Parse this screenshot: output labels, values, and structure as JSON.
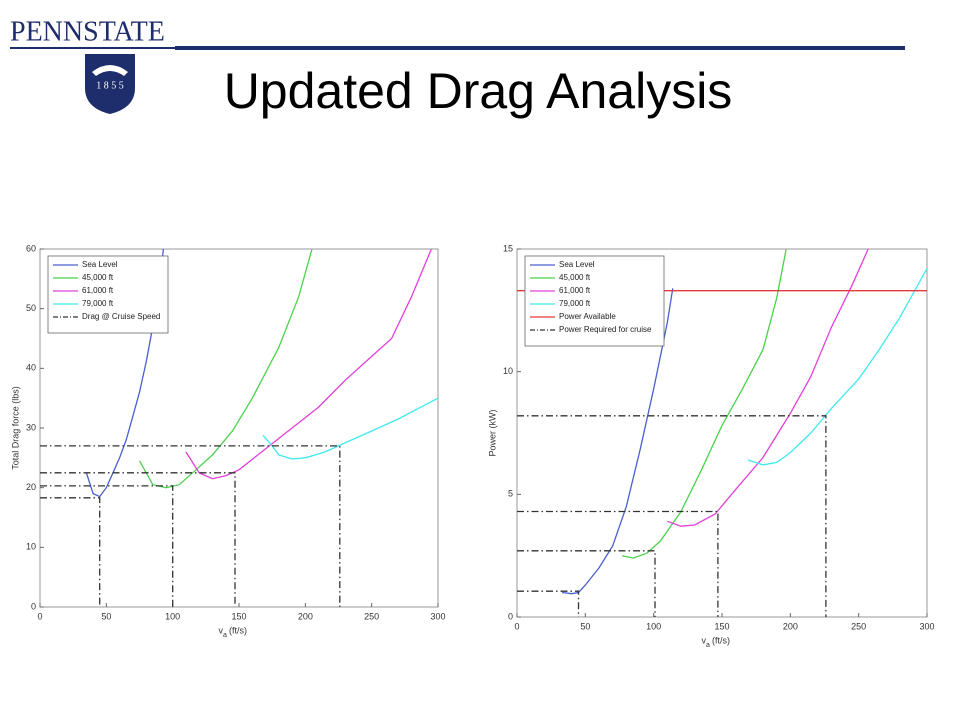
{
  "slide": {
    "title": "Updated Drag Analysis",
    "logo_text": "PENNSTATE",
    "logo_year": "1 8 5 5"
  },
  "chart_data": [
    {
      "type": "line",
      "y_label": "Total Drag force (lbs)",
      "x_label": "v",
      "x_label_sub": "a",
      "x_label_unit": "(ft/s)",
      "xlim": [
        0,
        300
      ],
      "xticks": [
        0,
        50,
        100,
        150,
        200,
        250,
        300
      ],
      "ylim": [
        0,
        60
      ],
      "yticks": [
        0,
        10,
        20,
        30,
        40,
        50,
        60
      ],
      "series": [
        {
          "name": "Sea Level",
          "color": "#4a5fd0",
          "style": "solid",
          "x": [
            35,
            40,
            45,
            50,
            55,
            60,
            65,
            70,
            75,
            80,
            85,
            90,
            93
          ],
          "values": [
            22.5,
            19,
            18.5,
            20,
            22.5,
            25,
            28,
            32,
            36,
            41,
            47,
            54,
            60
          ]
        },
        {
          "name": "45,000 ft",
          "color": "#4ad24a",
          "style": "solid",
          "x": [
            75,
            85,
            95,
            105,
            115,
            130,
            145,
            160,
            180,
            195,
            205
          ],
          "values": [
            24.5,
            20.5,
            20,
            20.5,
            22.5,
            25.5,
            29.5,
            35,
            43.5,
            52,
            60
          ]
        },
        {
          "name": "61,000 ft",
          "color": "#e040d8",
          "style": "solid",
          "x": [
            110,
            120,
            130,
            140,
            150,
            170,
            190,
            210,
            230,
            250,
            265,
            280,
            295
          ],
          "values": [
            26,
            22.5,
            21.5,
            22,
            23,
            26.5,
            30,
            33.5,
            38,
            42,
            45,
            52,
            60
          ]
        },
        {
          "name": "79,000 ft",
          "color": "#40e8f0",
          "style": "solid",
          "x": [
            168,
            175,
            180,
            190,
            200,
            215,
            230,
            250,
            270,
            300
          ],
          "values": [
            28.8,
            27,
            25.5,
            24.8,
            25,
            26,
            27.5,
            29.5,
            31.5,
            35
          ]
        },
        {
          "name": "Drag @ Cruise Speed",
          "color": "#333333",
          "style": "dashdot",
          "x": [
            0,
            45,
            45,
            null,
            0,
            100,
            100,
            null,
            0,
            147,
            147,
            null,
            0,
            226,
            226
          ],
          "values": [
            18.3,
            18.3,
            0,
            null,
            20.3,
            20.3,
            0,
            null,
            22.5,
            22.5,
            0,
            null,
            27,
            27,
            0
          ]
        }
      ]
    },
    {
      "type": "line",
      "y_label": "Power (kW)",
      "x_label": "v",
      "x_label_sub": "a",
      "x_label_unit": "(ft/s)",
      "xlim": [
        0,
        300
      ],
      "xticks": [
        0,
        50,
        100,
        150,
        200,
        250,
        300
      ],
      "ylim": [
        0,
        15
      ],
      "yticks": [
        0,
        5,
        10,
        15
      ],
      "series": [
        {
          "name": "Sea Level",
          "color": "#4a5fd0",
          "style": "solid",
          "x": [
            33,
            40,
            45,
            50,
            60,
            70,
            80,
            90,
            100,
            110,
            114
          ],
          "values": [
            1.0,
            0.95,
            1.0,
            1.3,
            2,
            2.9,
            4.5,
            6.8,
            9.3,
            12,
            13.4
          ]
        },
        {
          "name": "45,000 ft",
          "color": "#4ad24a",
          "style": "solid",
          "x": [
            77,
            85,
            95,
            105,
            120,
            135,
            150,
            165,
            180,
            190,
            197
          ],
          "values": [
            2.5,
            2.4,
            2.6,
            3.1,
            4.3,
            6,
            7.8,
            9.3,
            10.9,
            13,
            15
          ]
        },
        {
          "name": "61,000 ft",
          "color": "#e040d8",
          "style": "solid",
          "x": [
            110,
            120,
            130,
            145,
            160,
            180,
            200,
            215,
            230,
            245,
            257
          ],
          "values": [
            3.9,
            3.7,
            3.75,
            4.2,
            5.2,
            6.5,
            8.3,
            9.8,
            11.8,
            13.5,
            15
          ]
        },
        {
          "name": "79,000 ft",
          "color": "#40e8f0",
          "style": "solid",
          "x": [
            169,
            180,
            190,
            200,
            215,
            230,
            250,
            265,
            280,
            300
          ],
          "values": [
            6.4,
            6.2,
            6.3,
            6.7,
            7.5,
            8.5,
            9.7,
            10.9,
            12.2,
            14.2
          ]
        },
        {
          "name": "Power Available",
          "color": "#e03a3a",
          "style": "solid",
          "x": [
            0,
            300
          ],
          "values": [
            13.3,
            13.3
          ]
        },
        {
          "name": "Power Required for cruise",
          "color": "#333333",
          "style": "dashdot",
          "x": [
            0,
            45,
            45,
            null,
            0,
            101,
            101,
            null,
            0,
            147,
            147,
            null,
            0,
            226,
            226
          ],
          "values": [
            1.05,
            1.05,
            0,
            null,
            2.7,
            2.7,
            0,
            null,
            4.3,
            4.3,
            0,
            null,
            8.2,
            8.2,
            0
          ]
        }
      ]
    }
  ]
}
